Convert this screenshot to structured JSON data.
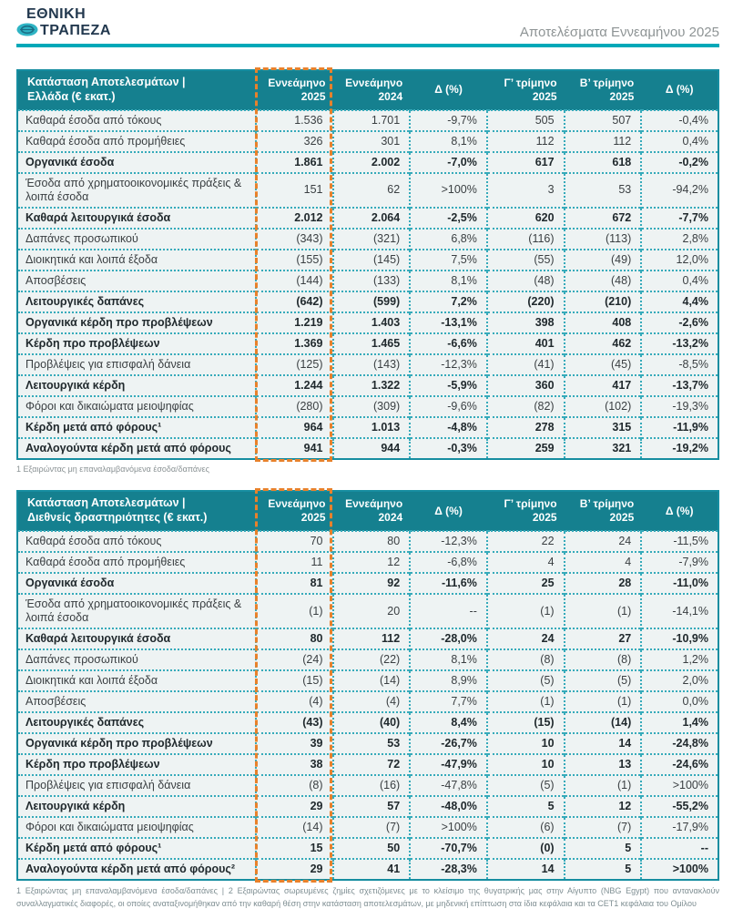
{
  "header": {
    "logo_line1": "ΕΘΝΙΚΗ",
    "logo_line2": "ΤΡΑΠΕΖΑ",
    "page_title": "Αποτελέσματα Εννεαμήνου 2025"
  },
  "colors": {
    "header_teal": "#15808f",
    "border_teal": "#35aaba",
    "accent_rule_teal": "#00a8b8",
    "highlight_orange": "#e8812b",
    "row_background": "#eef3f3"
  },
  "columns": [
    {
      "l1": "Εννεάμηνο",
      "l2": "2025"
    },
    {
      "l1": "Εννεάμηνο",
      "l2": "2024"
    },
    {
      "l1": "Δ (%)",
      "l2": ""
    },
    {
      "l1": "Γ’ τρίμηνο",
      "l2": "2025"
    },
    {
      "l1": "Β’ τρίμηνο",
      "l2": "2025"
    },
    {
      "l1": "Δ (%)",
      "l2": ""
    }
  ],
  "tables": [
    {
      "title_line1": "Κατάσταση Αποτελεσμάτων |",
      "title_line2": "Ελλάδα (€ εκατ.)",
      "rows": [
        {
          "label": "Καθαρά έσοδα από τόκους",
          "bold": false,
          "values": [
            "1.536",
            "1.701",
            "-9,7%",
            "505",
            "507",
            "-0,4%"
          ]
        },
        {
          "label": "Καθαρά έσοδα από προμήθειες",
          "bold": false,
          "values": [
            "326",
            "301",
            "8,1%",
            "112",
            "112",
            "0,4%"
          ]
        },
        {
          "label": "Οργανικά έσοδα",
          "bold": true,
          "values": [
            "1.861",
            "2.002",
            "-7,0%",
            "617",
            "618",
            "-0,2%"
          ]
        },
        {
          "label": "Έσοδα από χρηματοοικονομικές πράξεις & λοιπά έσοδα",
          "bold": false,
          "values": [
            "151",
            "62",
            ">100%",
            "3",
            "53",
            "-94,2%"
          ]
        },
        {
          "label": "Καθαρά λειτουργικά έσοδα",
          "bold": true,
          "values": [
            "2.012",
            "2.064",
            "-2,5%",
            "620",
            "672",
            "-7,7%"
          ]
        },
        {
          "label": "Δαπάνες προσωπικού",
          "bold": false,
          "values": [
            "(343)",
            "(321)",
            "6,8%",
            "(116)",
            "(113)",
            "2,8%"
          ]
        },
        {
          "label": "Διοικητικά και λοιπά έξοδα",
          "bold": false,
          "values": [
            "(155)",
            "(145)",
            "7,5%",
            "(55)",
            "(49)",
            "12,0%"
          ]
        },
        {
          "label": "Αποσβέσεις",
          "bold": false,
          "values": [
            "(144)",
            "(133)",
            "8,1%",
            "(48)",
            "(48)",
            "0,4%"
          ]
        },
        {
          "label": "Λειτουργικές δαπάνες",
          "bold": true,
          "values": [
            "(642)",
            "(599)",
            "7,2%",
            "(220)",
            "(210)",
            "4,4%"
          ]
        },
        {
          "label": "Οργανικά κέρδη προ προβλέψεων",
          "bold": true,
          "values": [
            "1.219",
            "1.403",
            "-13,1%",
            "398",
            "408",
            "-2,6%"
          ]
        },
        {
          "label": "Κέρδη προ προβλέψεων",
          "bold": true,
          "values": [
            "1.369",
            "1.465",
            "-6,6%",
            "401",
            "462",
            "-13,2%"
          ]
        },
        {
          "label": "Προβλέψεις για επισφαλή δάνεια",
          "bold": false,
          "values": [
            "(125)",
            "(143)",
            "-12,3%",
            "(41)",
            "(45)",
            "-8,5%"
          ]
        },
        {
          "label": "Λειτουργικά κέρδη",
          "bold": true,
          "values": [
            "1.244",
            "1.322",
            "-5,9%",
            "360",
            "417",
            "-13,7%"
          ]
        },
        {
          "label": "Φόροι και δικαιώματα μειοψηφίας",
          "bold": false,
          "values": [
            "(280)",
            "(309)",
            "-9,6%",
            "(82)",
            "(102)",
            "-19,3%"
          ]
        },
        {
          "label": "Κέρδη μετά από φόρους¹",
          "bold": true,
          "values": [
            "964",
            "1.013",
            "-4,8%",
            "278",
            "315",
            "-11,9%"
          ]
        },
        {
          "label": "Αναλογούντα κέρδη μετά από φόρους",
          "bold": true,
          "values": [
            "941",
            "944",
            "-0,3%",
            "259",
            "321",
            "-19,2%"
          ]
        }
      ],
      "footnote": "1 Εξαιρώντας μη επαναλαμβανόμενα έσοδα/δαπάνες"
    },
    {
      "title_line1": "Κατάσταση Αποτελεσμάτων |",
      "title_line2": "Διεθνείς δραστηριότητες (€ εκατ.)",
      "rows": [
        {
          "label": "Καθαρά έσοδα από τόκους",
          "bold": false,
          "values": [
            "70",
            "80",
            "-12,3%",
            "22",
            "24",
            "-11,5%"
          ]
        },
        {
          "label": "Καθαρά έσοδα από προμήθειες",
          "bold": false,
          "values": [
            "11",
            "12",
            "-6,8%",
            "4",
            "4",
            "-7,9%"
          ]
        },
        {
          "label": "Οργανικά έσοδα",
          "bold": true,
          "values": [
            "81",
            "92",
            "-11,6%",
            "25",
            "28",
            "-11,0%"
          ]
        },
        {
          "label": "Έσοδα από χρηματοοικονομικές πράξεις & λοιπά έσοδα",
          "bold": false,
          "values": [
            "(1)",
            "20",
            "--",
            "(1)",
            "(1)",
            "-14,1%"
          ]
        },
        {
          "label": "Καθαρά λειτουργικά έσοδα",
          "bold": true,
          "values": [
            "80",
            "112",
            "-28,0%",
            "24",
            "27",
            "-10,9%"
          ]
        },
        {
          "label": "Δαπάνες προσωπικού",
          "bold": false,
          "values": [
            "(24)",
            "(22)",
            "8,1%",
            "(8)",
            "(8)",
            "1,2%"
          ]
        },
        {
          "label": "Διοικητικά και λοιπά έξοδα",
          "bold": false,
          "values": [
            "(15)",
            "(14)",
            "8,9%",
            "(5)",
            "(5)",
            "2,0%"
          ]
        },
        {
          "label": "Αποσβέσεις",
          "bold": false,
          "values": [
            "(4)",
            "(4)",
            "7,7%",
            "(1)",
            "(1)",
            "0,0%"
          ]
        },
        {
          "label": "Λειτουργικές δαπάνες",
          "bold": true,
          "values": [
            "(43)",
            "(40)",
            "8,4%",
            "(15)",
            "(14)",
            "1,4%"
          ]
        },
        {
          "label": "Οργανικά κέρδη προ προβλέψεων",
          "bold": true,
          "values": [
            "39",
            "53",
            "-26,7%",
            "10",
            "14",
            "-24,8%"
          ]
        },
        {
          "label": "Κέρδη προ προβλέψεων",
          "bold": true,
          "values": [
            "38",
            "72",
            "-47,9%",
            "10",
            "13",
            "-24,6%"
          ]
        },
        {
          "label": "Προβλέψεις για επισφαλή δάνεια",
          "bold": false,
          "values": [
            "(8)",
            "(16)",
            "-47,8%",
            "(5)",
            "(1)",
            ">100%"
          ]
        },
        {
          "label": "Λειτουργικά κέρδη",
          "bold": true,
          "values": [
            "29",
            "57",
            "-48,0%",
            "5",
            "12",
            "-55,2%"
          ]
        },
        {
          "label": "Φόροι και δικαιώματα μειοψηφίας",
          "bold": false,
          "values": [
            "(14)",
            "(7)",
            ">100%",
            "(6)",
            "(7)",
            "-17,9%"
          ]
        },
        {
          "label": "Κέρδη μετά από φόρους¹",
          "bold": true,
          "values": [
            "15",
            "50",
            "-70,7%",
            "(0)",
            "5",
            "--"
          ]
        },
        {
          "label": "Αναλογούντα κέρδη μετά από φόρους²",
          "bold": true,
          "values": [
            "29",
            "41",
            "-28,3%",
            "14",
            "5",
            ">100%"
          ]
        }
      ],
      "footnote": "1 Εξαιρώντας μη επαναλαμβανόμενα έσοδα/δαπάνες | 2 Εξαιρώντας σωρευμένες ζημίες σχετιζόμενες με το κλείσιμο της θυγατρικής μας στην Αίγυπτο (NBG Egypt) που αντανακλούν συναλλαγματικές διαφορές, οι οποίες αναταξινομήθηκαν από την καθαρή θέση στην κατάσταση αποτελεσμάτων, με μηδενική επίπτωση στα ίδια κεφάλαια και τα CET1 κεφάλαια του Ομίλου"
    }
  ]
}
